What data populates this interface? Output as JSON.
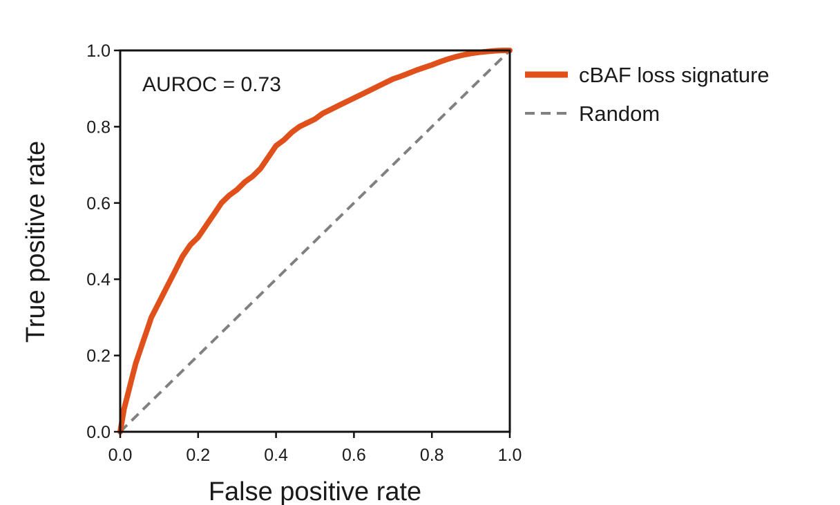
{
  "chart_data": {
    "type": "line",
    "title": "",
    "xlabel": "False positive rate",
    "ylabel": "True positive rate",
    "xlim": [
      0,
      1
    ],
    "ylim": [
      0,
      1
    ],
    "x_ticks": [
      "0.0",
      "0.2",
      "0.4",
      "0.6",
      "0.8",
      "1.0"
    ],
    "y_ticks": [
      "0.0",
      "0.2",
      "0.4",
      "0.6",
      "0.8",
      "1.0"
    ],
    "grid": false,
    "legend_position": "outside-right-top",
    "annotation": "AUROC = 0.73",
    "series": [
      {
        "name": "cBAF loss signature",
        "color": "#e0501b",
        "style": "solid",
        "x": [
          0.0,
          0.005,
          0.01,
          0.02,
          0.03,
          0.04,
          0.05,
          0.06,
          0.07,
          0.08,
          0.09,
          0.1,
          0.12,
          0.14,
          0.16,
          0.18,
          0.2,
          0.22,
          0.24,
          0.26,
          0.28,
          0.3,
          0.32,
          0.34,
          0.36,
          0.38,
          0.4,
          0.42,
          0.44,
          0.46,
          0.48,
          0.5,
          0.52,
          0.54,
          0.56,
          0.58,
          0.6,
          0.62,
          0.64,
          0.66,
          0.68,
          0.7,
          0.72,
          0.74,
          0.76,
          0.78,
          0.8,
          0.82,
          0.84,
          0.86,
          0.88,
          0.9,
          0.92,
          0.94,
          0.96,
          0.98,
          1.0
        ],
        "y": [
          0.0,
          0.03,
          0.06,
          0.1,
          0.14,
          0.18,
          0.21,
          0.24,
          0.27,
          0.3,
          0.32,
          0.34,
          0.38,
          0.42,
          0.46,
          0.49,
          0.51,
          0.54,
          0.57,
          0.6,
          0.62,
          0.635,
          0.655,
          0.67,
          0.69,
          0.72,
          0.75,
          0.765,
          0.785,
          0.8,
          0.81,
          0.82,
          0.835,
          0.845,
          0.855,
          0.865,
          0.875,
          0.885,
          0.895,
          0.905,
          0.915,
          0.925,
          0.932,
          0.94,
          0.948,
          0.955,
          0.962,
          0.97,
          0.977,
          0.983,
          0.988,
          0.992,
          0.995,
          0.997,
          0.999,
          1.0,
          1.0
        ]
      },
      {
        "name": "Random",
        "color": "#808080",
        "style": "dashed",
        "x": [
          0,
          1
        ],
        "y": [
          0,
          1
        ]
      }
    ]
  }
}
